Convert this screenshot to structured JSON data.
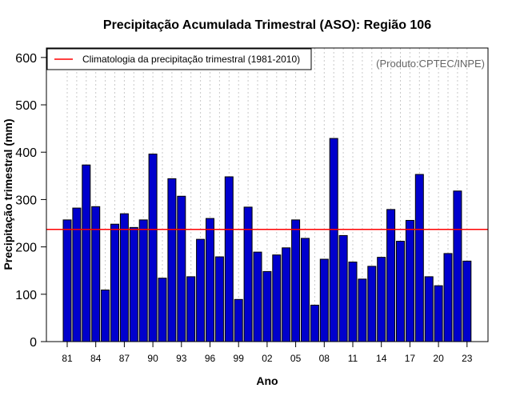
{
  "chart_data": {
    "type": "bar",
    "title": "Precipitação Acumulada Trimestral (ASO): Região 106",
    "xlabel": "Ano",
    "ylabel": "Precipitação trimestral (mm)",
    "ylim": [
      0,
      620
    ],
    "yticks": [
      0,
      100,
      200,
      300,
      400,
      500,
      600
    ],
    "x_tick_labels": [
      "81",
      "84",
      "87",
      "90",
      "93",
      "96",
      "99",
      "02",
      "05",
      "08",
      "11",
      "14",
      "17",
      "20",
      "23"
    ],
    "x_tick_years": [
      1981,
      1984,
      1987,
      1990,
      1993,
      1996,
      1999,
      2002,
      2005,
      2008,
      2011,
      2014,
      2017,
      2020,
      2023
    ],
    "categories": [
      "1981",
      "1982",
      "1983",
      "1984",
      "1985",
      "1986",
      "1987",
      "1988",
      "1989",
      "1990",
      "1991",
      "1992",
      "1993",
      "1994",
      "1995",
      "1996",
      "1997",
      "1998",
      "1999",
      "2000",
      "2001",
      "2002",
      "2003",
      "2004",
      "2005",
      "2006",
      "2007",
      "2008",
      "2009",
      "2010",
      "2011",
      "2012",
      "2013",
      "2014",
      "2015",
      "2016",
      "2017",
      "2018",
      "2019",
      "2020",
      "2021",
      "2022",
      "2023"
    ],
    "values": [
      257,
      282,
      373,
      285,
      109,
      248,
      270,
      241,
      257,
      396,
      134,
      344,
      307,
      137,
      216,
      260,
      179,
      348,
      89,
      284,
      189,
      148,
      183,
      198,
      257,
      218,
      77,
      174,
      429,
      224,
      168,
      132,
      159,
      178,
      279,
      212,
      256,
      353,
      137,
      118,
      186,
      318,
      170
    ],
    "climatology": 237,
    "legend": {
      "label": "Climatologia da precipitação trimestral (1981-2010)",
      "placement": "top-left"
    },
    "annotation": "(Produto:CPTEC/INPE)",
    "grid": "vertical dotted",
    "colors": {
      "bar_fill": "#0000cd",
      "bar_stroke": "#000000",
      "climatology_line": "#ff0000",
      "grid": "#c8c8c8",
      "credit": "#666666"
    }
  }
}
